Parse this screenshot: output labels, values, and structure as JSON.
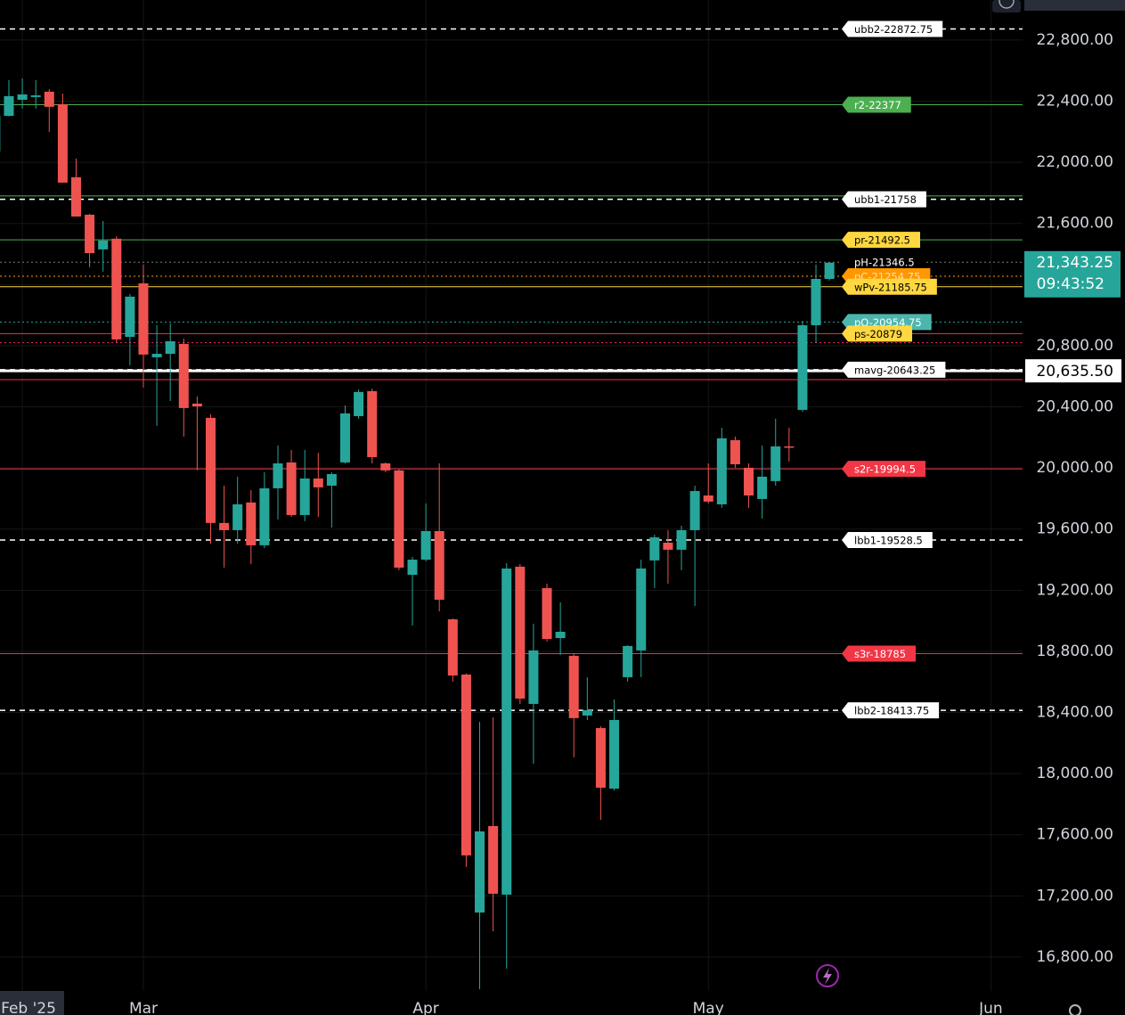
{
  "chart_data": {
    "type": "candlestick",
    "x": [
      0,
      1,
      2,
      3,
      4,
      5,
      6,
      7,
      8,
      9,
      10,
      11,
      12,
      13,
      14,
      15,
      16,
      17,
      18,
      19,
      20,
      21,
      22,
      23,
      24,
      25,
      26,
      27,
      28,
      29,
      30,
      31,
      32,
      33,
      34,
      35,
      36,
      37,
      38,
      39,
      40,
      41,
      42,
      43,
      44,
      45,
      46,
      47,
      48,
      49,
      50,
      51,
      52,
      53,
      54,
      55,
      56,
      57,
      58,
      59,
      60,
      61,
      62
    ],
    "open": [
      22071,
      22304,
      22409,
      22427,
      22462,
      22380,
      21902,
      21657,
      21430,
      21500,
      20858,
      21208,
      20724,
      20747,
      20812,
      20421,
      20328,
      19640,
      19593,
      19774,
      19494,
      19867,
      20036,
      19692,
      19931,
      19884,
      20036,
      20339,
      20503,
      20030,
      19984,
      19301,
      19400,
      19587,
      19010,
      18648,
      17091,
      17657,
      17208,
      19354,
      18456,
      19214,
      18887,
      18771,
      18380,
      18298,
      17902,
      18631,
      18806,
      19395,
      19511,
      19465,
      19593,
      19820,
      19762,
      20182,
      20001,
      19797,
      19914,
      20141,
      20380,
      20934,
      21237
    ],
    "high": [
      22334,
      22538,
      22549,
      22538,
      22479,
      22450,
      22024,
      21663,
      21616,
      21517,
      21138,
      21331,
      20934,
      20946,
      20847,
      20468,
      20351,
      19884,
      19943,
      19855,
      19972,
      20147,
      20118,
      20118,
      20100,
      19972,
      20409,
      20514,
      20520,
      20036,
      19990,
      19418,
      19768,
      20030,
      19015,
      18655,
      18339,
      18368,
      19377,
      19371,
      18981,
      19243,
      19121,
      18788,
      18631,
      18310,
      18485,
      18840,
      19400,
      19564,
      19593,
      19622,
      19884,
      20030,
      20263,
      20205,
      20030,
      20147,
      20322,
      20263,
      20963,
      21331,
      21343.25
    ],
    "low": [
      22060,
      22300,
      22351,
      22351,
      22199,
      21867,
      21645,
      21313,
      21284,
      20817,
      20672,
      20526,
      20275,
      20438,
      20205,
      19984,
      19505,
      19348,
      19505,
      19371,
      19476,
      19663,
      19680,
      19651,
      19680,
      19610,
      20030,
      20322,
      20030,
      19972,
      19331,
      18969,
      19389,
      19062,
      18602,
      17389,
      16590,
      16969,
      16724,
      18456,
      18065,
      18864,
      18777,
      18106,
      18351,
      17698,
      17890,
      18602,
      18631,
      19214,
      19243,
      19331,
      19097,
      19768,
      19739,
      20001,
      19739,
      19669,
      19884,
      20042,
      20368,
      20817,
      21226
    ],
    "close": [
      22304,
      22433,
      22444,
      22438,
      22363,
      21867,
      21645,
      21406,
      21488,
      20841,
      21121,
      20742,
      20747,
      20829,
      20392,
      20403,
      19640,
      19593,
      19762,
      19494,
      19867,
      20030,
      19692,
      19931,
      19873,
      19960,
      20357,
      20497,
      20071,
      19984,
      19348,
      19400,
      19587,
      19138,
      18642,
      17465,
      17622,
      17214,
      19342,
      18491,
      18806,
      18881,
      18928,
      18363,
      18415,
      17908,
      18351,
      18835,
      19342,
      19546,
      19465,
      19593,
      19849,
      19780,
      20194,
      20024,
      19820,
      19943,
      20141,
      20135,
      20934,
      21237,
      21343.25
    ],
    "up_color": "#26a69a",
    "down_color": "#ef5350",
    "xlim": [
      0.34,
      76.36
    ],
    "xticks": [
      {
        "value": 2,
        "label": "Feb '25"
      },
      {
        "value": 11,
        "label": "Mar"
      },
      {
        "value": 32,
        "label": "Apr"
      },
      {
        "value": 53,
        "label": "May"
      },
      {
        "value": 74,
        "label": "Jun"
      }
    ],
    "ylim": [
      16578,
      23062
    ],
    "yticks": [
      {
        "value": 16800,
        "label": "16,800.00"
      },
      {
        "value": 17200,
        "label": "17,200.00"
      },
      {
        "value": 17600,
        "label": "17,600.00"
      },
      {
        "value": 18000,
        "label": "18,000.00"
      },
      {
        "value": 18400,
        "label": "18,400.00"
      },
      {
        "value": 18800,
        "label": "18,800.00"
      },
      {
        "value": 19200,
        "label": "19,200.00"
      },
      {
        "value": 19600,
        "label": "19,600.00"
      },
      {
        "value": 20000,
        "label": "20,000.00"
      },
      {
        "value": 20400,
        "label": "20,400.00"
      },
      {
        "value": 20800,
        "label": "20,800.00"
      },
      {
        "value": 21200,
        "label": "21,200.00"
      },
      {
        "value": 21600,
        "label": "21,600.00"
      },
      {
        "value": 22000,
        "label": "22,000.00"
      },
      {
        "value": 22400,
        "label": "22,400.00"
      },
      {
        "value": 22800,
        "label": "22,800.00"
      }
    ],
    "grid": true,
    "levels": [
      {
        "label": "ubb2-22872.75",
        "value": 22872.75,
        "color": "#ffffff",
        "style": "dashed",
        "tag": "#ffffff",
        "text_color": "#000000"
      },
      {
        "label": "r2-22377",
        "value": 22377,
        "color": "#4caf50",
        "style": "solid",
        "tag": "#4caf50",
        "text_color": "#ffffff"
      },
      {
        "value": 21780,
        "color": "#4caf50",
        "style": "solid"
      },
      {
        "label": "ubb1-21758",
        "value": 21758,
        "color": "#ffffff",
        "style": "dashed",
        "tag": "#ffffff",
        "text_color": "#000000"
      },
      {
        "label": "pr-21492.5",
        "value": 21492.5,
        "color": "#4caf50",
        "style": "solid",
        "tag": "#ffd740",
        "text_color": "#000000"
      },
      {
        "label": "pH-21346.5",
        "value": 21346.5,
        "color": "#787b86",
        "style": "dotted",
        "tag": "#000000",
        "text_color": "#ffffff"
      },
      {
        "label": "pC-21254.75",
        "value": 21254.75,
        "color": "#ff9800",
        "style": "dotted",
        "tag": "#ff9800",
        "text_color": "#ffe0b2"
      },
      {
        "label": "wPv-21185.75",
        "value": 21185.75,
        "color": "#ffd740",
        "style": "solid",
        "tag": "#ffd740",
        "text_color": "#000000"
      },
      {
        "label": "pO-20954.75",
        "value": 20954.75,
        "color": "#26a69a",
        "style": "dotted",
        "tag": "#4db6ac",
        "text_color": "#ffffff"
      },
      {
        "label": "ps-20879",
        "value": 20879,
        "color": "#f23645",
        "style": "solid",
        "tag": "#ffd740",
        "text_color": "#000000"
      },
      {
        "value": 20820,
        "color": "#e91e63",
        "style": "dotted"
      },
      {
        "label": "mavg-20643.25",
        "value": 20643.25,
        "color": "#ffffff",
        "style": "dashed",
        "tag": "#ffffff",
        "text_color": "#000000"
      },
      {
        "value": 20578,
        "color": "#f23645",
        "style": "solid"
      },
      {
        "label": "s2r-19994.5",
        "value": 19994.5,
        "color": "#f23645",
        "style": "solid",
        "tag": "#f23645",
        "text_color": "#ffffff"
      },
      {
        "label": "lbb1-19528.5",
        "value": 19528.5,
        "color": "#ffffff",
        "style": "dashed",
        "tag": "#ffffff",
        "text_color": "#000000"
      },
      {
        "label": "s3r-18785",
        "value": 18785,
        "color": "#f23645",
        "style": "solid",
        "tag": "#f23645",
        "text_color": "#ffffff"
      },
      {
        "label": "lbb2-18413.75",
        "value": 18413.75,
        "color": "#ffffff",
        "style": "dashed",
        "tag": "#ffffff",
        "text_color": "#000000"
      }
    ],
    "marker": {
      "value": 20635.5,
      "label": "20,635.50"
    },
    "last_price": {
      "value": 21343.25,
      "label": "21,343.25",
      "time": "09:43:52"
    }
  }
}
